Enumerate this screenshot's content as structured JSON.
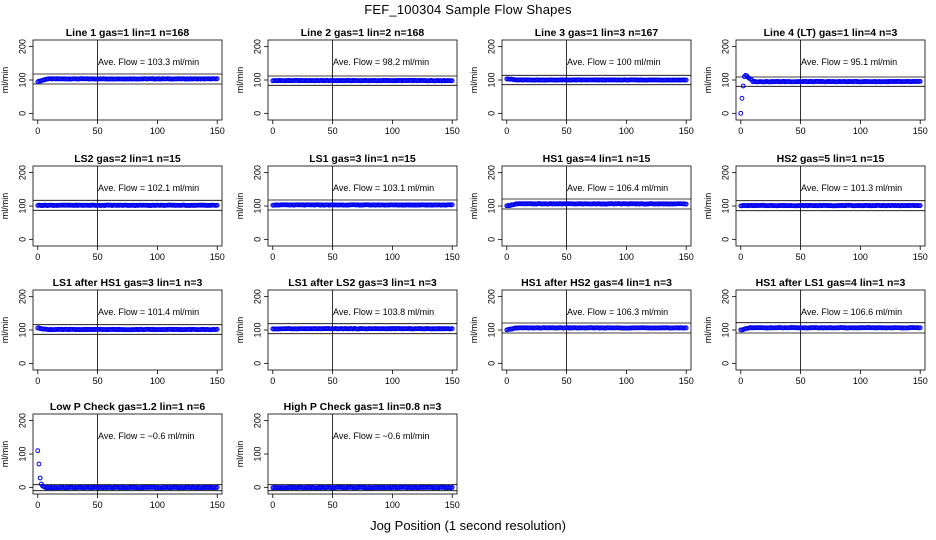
{
  "figure": {
    "title": "FEF_100304  Sample Flow Shapes",
    "xlabel": "Jog Position (1 second resolution)"
  },
  "chart_data": [
    {
      "type": "scatter",
      "title": "Line 1 gas=1 lin=1 n=168",
      "ylabel": "ml/min",
      "annotation": "Ave. Flow =  103.3  ml/min",
      "mean": 103.3,
      "shape": "flat",
      "start_value": 95,
      "ref_lines": [
        88,
        118
      ],
      "xlim": [
        -4,
        154
      ],
      "ylim": [
        -20,
        220
      ],
      "xticks": [
        0,
        50,
        100,
        150
      ],
      "yticks": [
        0,
        100,
        200
      ],
      "vline": 50
    },
    {
      "type": "scatter",
      "title": "Line 2 gas=1 lin=2 n=168",
      "ylabel": "ml/min",
      "annotation": "Ave. Flow =  98.2  ml/min",
      "mean": 98.2,
      "shape": "flat",
      "start_value": 98,
      "ref_lines": [
        84,
        112
      ],
      "xlim": [
        -4,
        154
      ],
      "ylim": [
        -20,
        220
      ],
      "xticks": [
        0,
        50,
        100,
        150
      ],
      "yticks": [
        0,
        100,
        200
      ],
      "vline": 50
    },
    {
      "type": "scatter",
      "title": "Line 3 gas=1 lin=3 n=167",
      "ylabel": "ml/min",
      "annotation": "Ave. Flow =  100  ml/min",
      "mean": 100,
      "shape": "flat",
      "start_value": 104,
      "ref_lines": [
        86,
        114
      ],
      "xlim": [
        -4,
        154
      ],
      "ylim": [
        -20,
        220
      ],
      "xticks": [
        0,
        50,
        100,
        150
      ],
      "yticks": [
        0,
        100,
        200
      ],
      "vline": 50
    },
    {
      "type": "scatter",
      "title": "Line 4 (LT) gas=1 lin=4 n=3",
      "ylabel": "ml/min",
      "annotation": "Ave. Flow =  95.1  ml/min",
      "mean": 95.1,
      "shape": "startup",
      "start_points": [
        0,
        45,
        82,
        110,
        114,
        112,
        108,
        105,
        103,
        101
      ],
      "ref_lines": [
        81,
        109
      ],
      "xlim": [
        -4,
        154
      ],
      "ylim": [
        -20,
        220
      ],
      "xticks": [
        0,
        50,
        100,
        150
      ],
      "yticks": [
        0,
        100,
        200
      ],
      "vline": 50
    },
    {
      "type": "scatter",
      "title": "LS2 gas=2 lin=1 n=15",
      "ylabel": "ml/min",
      "annotation": "Ave. Flow =  102.1  ml/min",
      "mean": 102.1,
      "shape": "flat",
      "start_value": 102,
      "ref_lines": [
        87,
        117
      ],
      "xlim": [
        -4,
        154
      ],
      "ylim": [
        -20,
        220
      ],
      "xticks": [
        0,
        50,
        100,
        150
      ],
      "yticks": [
        0,
        100,
        200
      ],
      "vline": 50
    },
    {
      "type": "scatter",
      "title": "LS1 gas=3 lin=1 n=15",
      "ylabel": "ml/min",
      "annotation": "Ave. Flow =  103.1  ml/min",
      "mean": 103.1,
      "shape": "flat",
      "start_value": 103,
      "ref_lines": [
        88,
        118
      ],
      "xlim": [
        -4,
        154
      ],
      "ylim": [
        -20,
        220
      ],
      "xticks": [
        0,
        50,
        100,
        150
      ],
      "yticks": [
        0,
        100,
        200
      ],
      "vline": 50
    },
    {
      "type": "scatter",
      "title": "HS1 gas=4 lin=1 n=15",
      "ylabel": "ml/min",
      "annotation": "Ave. Flow =  106.4  ml/min",
      "mean": 106.4,
      "shape": "flat",
      "start_value": 100,
      "ref_lines": [
        91,
        121
      ],
      "xlim": [
        -4,
        154
      ],
      "ylim": [
        -20,
        220
      ],
      "xticks": [
        0,
        50,
        100,
        150
      ],
      "yticks": [
        0,
        100,
        200
      ],
      "vline": 50
    },
    {
      "type": "scatter",
      "title": "HS2 gas=5 lin=1 n=15",
      "ylabel": "ml/min",
      "annotation": "Ave. Flow =  101.3  ml/min",
      "mean": 101.3,
      "shape": "flat",
      "start_value": 101,
      "ref_lines": [
        86,
        116
      ],
      "xlim": [
        -4,
        154
      ],
      "ylim": [
        -20,
        220
      ],
      "xticks": [
        0,
        50,
        100,
        150
      ],
      "yticks": [
        0,
        100,
        200
      ],
      "vline": 50
    },
    {
      "type": "scatter",
      "title": "LS1 after HS1 gas=3 lin=1 n=3",
      "ylabel": "ml/min",
      "annotation": "Ave. Flow =  101.4  ml/min",
      "mean": 101.4,
      "shape": "flat",
      "start_value": 106,
      "ref_lines": [
        87,
        116
      ],
      "xlim": [
        -4,
        154
      ],
      "ylim": [
        -20,
        220
      ],
      "xticks": [
        0,
        50,
        100,
        150
      ],
      "yticks": [
        0,
        100,
        200
      ],
      "vline": 50
    },
    {
      "type": "scatter",
      "title": "LS1 after LS2 gas=3 lin=1 n=3",
      "ylabel": "ml/min",
      "annotation": "Ave. Flow =  103.8  ml/min",
      "mean": 103.8,
      "shape": "flat",
      "start_value": 103,
      "ref_lines": [
        89,
        119
      ],
      "xlim": [
        -4,
        154
      ],
      "ylim": [
        -20,
        220
      ],
      "xticks": [
        0,
        50,
        100,
        150
      ],
      "yticks": [
        0,
        100,
        200
      ],
      "vline": 50
    },
    {
      "type": "scatter",
      "title": "HS1 after HS2 gas=4 lin=1 n=3",
      "ylabel": "ml/min",
      "annotation": "Ave. Flow =  106.3  ml/min",
      "mean": 106.3,
      "shape": "flat",
      "start_value": 100,
      "ref_lines": [
        91,
        121
      ],
      "xlim": [
        -4,
        154
      ],
      "ylim": [
        -20,
        220
      ],
      "xticks": [
        0,
        50,
        100,
        150
      ],
      "yticks": [
        0,
        100,
        200
      ],
      "vline": 50
    },
    {
      "type": "scatter",
      "title": "HS1 after LS1 gas=4 lin=1 n=3",
      "ylabel": "ml/min",
      "annotation": "Ave. Flow =  106.6  ml/min",
      "mean": 106.6,
      "shape": "flat",
      "start_value": 100,
      "ref_lines": [
        91,
        122
      ],
      "xlim": [
        -4,
        154
      ],
      "ylim": [
        -20,
        220
      ],
      "xticks": [
        0,
        50,
        100,
        150
      ],
      "yticks": [
        0,
        100,
        200
      ],
      "vline": 50
    },
    {
      "type": "scatter",
      "title": "Low P Check gas=1.2 lin=1 n=6",
      "ylabel": "ml/min",
      "annotation": "Ave. Flow =  −0.6  ml/min",
      "mean": -0.6,
      "shape": "decay",
      "start_points": [
        110,
        70,
        28,
        10,
        4,
        2,
        1
      ],
      "ref_lines": [
        -10,
        8
      ],
      "xlim": [
        -4,
        154
      ],
      "ylim": [
        -20,
        220
      ],
      "xticks": [
        0,
        50,
        100,
        150
      ],
      "yticks": [
        0,
        100,
        200
      ],
      "vline": 50
    },
    {
      "type": "scatter",
      "title": "High P Check gas=1 lin=0.8 n=3",
      "ylabel": "ml/min",
      "annotation": "Ave. Flow =  −0.6  ml/min",
      "mean": -0.6,
      "shape": "flat",
      "start_value": -1,
      "ref_lines": [
        -10,
        8
      ],
      "xlim": [
        -4,
        154
      ],
      "ylim": [
        -20,
        220
      ],
      "xticks": [
        0,
        50,
        100,
        150
      ],
      "yticks": [
        0,
        100,
        200
      ],
      "vline": 50
    }
  ],
  "colors": {
    "points": "#0000ee",
    "axes": "#000000"
  }
}
